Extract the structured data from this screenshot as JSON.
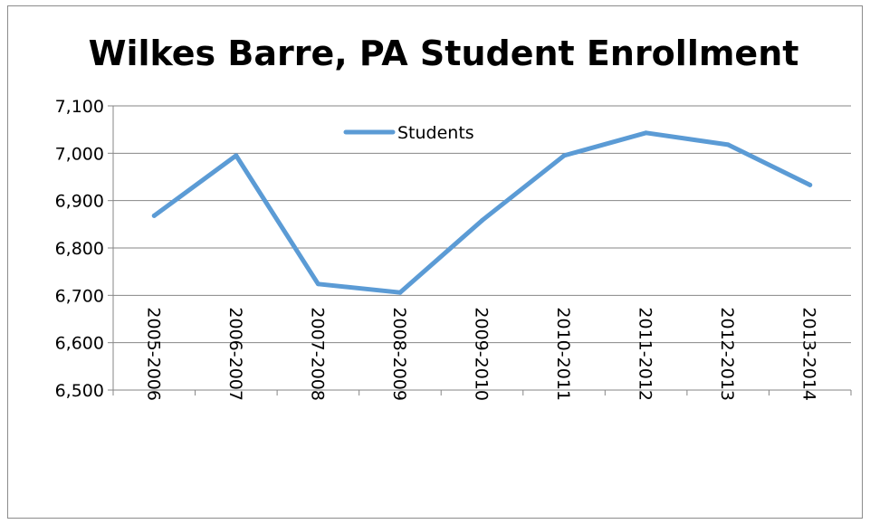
{
  "chart_data": {
    "type": "line",
    "title": "Wilkes Barre, PA Student Enrollment",
    "xlabel": "",
    "ylabel": "",
    "categories": [
      "2005-2006",
      "2006-2007",
      "2007-2008",
      "2008-2009",
      "2009-2010",
      "2010-2011",
      "2011-2012",
      "2012-2013",
      "2013-2014"
    ],
    "series": [
      {
        "name": "Students",
        "values": [
          6868,
          6995,
          6724,
          6706,
          6858,
          6995,
          7043,
          7018,
          6933
        ]
      }
    ],
    "ylim": [
      6500,
      7100
    ],
    "yticks": [
      6500,
      6600,
      6700,
      6800,
      6900,
      7000,
      7100
    ],
    "ytick_labels": [
      "6,500",
      "6,600",
      "6,700",
      "6,800",
      "6,900",
      "7,000",
      "7,100"
    ],
    "grid": true,
    "legend": "top-center",
    "colors": {
      "series": "#5b9bd5",
      "grid": "#868686",
      "axis": "#868686"
    }
  }
}
